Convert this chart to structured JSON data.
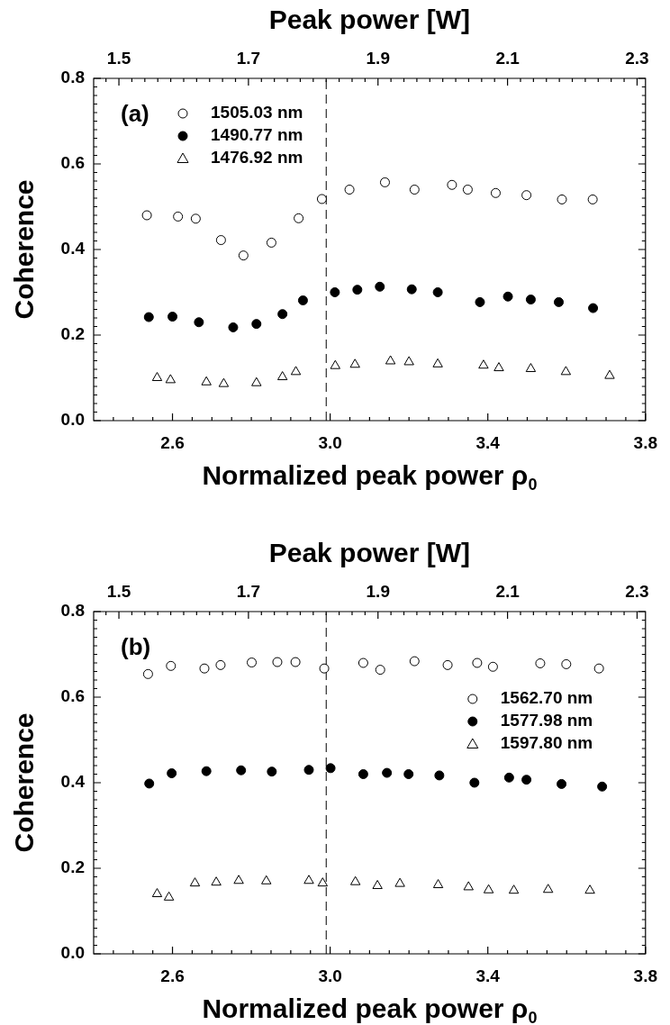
{
  "chart_data": [
    {
      "type": "scatter",
      "x2label": "Peak power [W]",
      "xlabel": "Normalized peak power ρ$_{0}$",
      "ylabel": "Coherence",
      "annotations": [
        "(a)"
      ],
      "legend": "top left",
      "xlim": [
        2.4,
        3.8
      ],
      "x2lim": [
        1.461,
        2.313
      ],
      "ylim": [
        0,
        0.8
      ],
      "xticks": [
        {
          "value": 2.45,
          "label": null
        },
        {
          "value": 2.5,
          "label": null
        },
        {
          "value": 2.55,
          "label": null
        },
        2.6,
        {
          "value": 2.65,
          "label": null
        },
        {
          "value": 2.7,
          "label": null
        },
        {
          "value": 2.75,
          "label": null
        },
        {
          "value": 2.8,
          "label": null
        },
        {
          "value": 2.85,
          "label": null
        },
        {
          "value": 2.9,
          "label": null
        },
        {
          "value": 2.95,
          "label": null
        },
        {
          "value": 3,
          "label": "3.0"
        },
        {
          "value": 3.05,
          "label": null
        },
        {
          "value": 3.1,
          "label": null
        },
        {
          "value": 3.15,
          "label": null
        },
        {
          "value": 3.2,
          "label": null
        },
        {
          "value": 3.25,
          "label": null
        },
        {
          "value": 3.3,
          "label": null
        },
        {
          "value": 3.35,
          "label": null
        },
        3.4,
        {
          "value": 3.45,
          "label": null
        },
        {
          "value": 3.5,
          "label": null
        },
        {
          "value": 3.55,
          "label": null
        },
        {
          "value": 3.6,
          "label": null
        },
        {
          "value": 3.65,
          "label": null
        },
        {
          "value": 3.7,
          "label": null
        },
        {
          "value": 3.75,
          "label": null
        },
        3.8
      ],
      "x2ticks": [
        {
          "value": 1.48,
          "label": null
        },
        1.5,
        {
          "value": 1.52,
          "label": null
        },
        {
          "value": 1.54,
          "label": null
        },
        {
          "value": 1.56,
          "label": null
        },
        {
          "value": 1.58,
          "label": null
        },
        {
          "value": 1.6,
          "label": null
        },
        {
          "value": 1.62,
          "label": null
        },
        {
          "value": 1.64,
          "label": null
        },
        {
          "value": 1.66,
          "label": null
        },
        {
          "value": 1.68,
          "label": null
        },
        1.7,
        {
          "value": 1.72,
          "label": null
        },
        {
          "value": 1.74,
          "label": null
        },
        {
          "value": 1.76,
          "label": null
        },
        {
          "value": 1.78,
          "label": null
        },
        {
          "value": 1.8,
          "label": null
        },
        {
          "value": 1.82,
          "label": null
        },
        {
          "value": 1.84,
          "label": null
        },
        {
          "value": 1.86,
          "label": null
        },
        {
          "value": 1.88,
          "label": null
        },
        1.9,
        {
          "value": 1.92,
          "label": null
        },
        {
          "value": 1.94,
          "label": null
        },
        {
          "value": 1.96,
          "label": null
        },
        {
          "value": 1.98,
          "label": null
        },
        {
          "value": 2,
          "label": null
        },
        {
          "value": 2.02,
          "label": null
        },
        {
          "value": 2.04,
          "label": null
        },
        {
          "value": 2.06,
          "label": null
        },
        {
          "value": 2.08,
          "label": null
        },
        2.1,
        {
          "value": 2.12,
          "label": null
        },
        {
          "value": 2.14,
          "label": null
        },
        {
          "value": 2.16,
          "label": null
        },
        {
          "value": 2.18,
          "label": null
        },
        {
          "value": 2.2,
          "label": null
        },
        {
          "value": 2.22,
          "label": null
        },
        {
          "value": 2.24,
          "label": null
        },
        {
          "value": 2.26,
          "label": null
        },
        {
          "value": 2.28,
          "label": null
        },
        2.3
      ],
      "yticks": [
        {
          "value": 0,
          "label": "0.0"
        },
        {
          "value": 0.02,
          "label": null
        },
        {
          "value": 0.04,
          "label": null
        },
        {
          "value": 0.06,
          "label": null
        },
        {
          "value": 0.08,
          "label": null
        },
        {
          "value": 0.1,
          "label": null
        },
        {
          "value": 0.12,
          "label": null
        },
        {
          "value": 0.14,
          "label": null
        },
        {
          "value": 0.16,
          "label": null
        },
        {
          "value": 0.18,
          "label": null
        },
        0.2,
        {
          "value": 0.22,
          "label": null
        },
        {
          "value": 0.24,
          "label": null
        },
        {
          "value": 0.26,
          "label": null
        },
        {
          "value": 0.28,
          "label": null
        },
        {
          "value": 0.3,
          "label": null
        },
        {
          "value": 0.32,
          "label": null
        },
        {
          "value": 0.34,
          "label": null
        },
        {
          "value": 0.36,
          "label": null
        },
        {
          "value": 0.38,
          "label": null
        },
        0.4,
        {
          "value": 0.42,
          "label": null
        },
        {
          "value": 0.44,
          "label": null
        },
        {
          "value": 0.46,
          "label": null
        },
        {
          "value": 0.48,
          "label": null
        },
        {
          "value": 0.5,
          "label": null
        },
        {
          "value": 0.52,
          "label": null
        },
        {
          "value": 0.54,
          "label": null
        },
        {
          "value": 0.56,
          "label": null
        },
        {
          "value": 0.58,
          "label": null
        },
        0.6,
        {
          "value": 0.62,
          "label": null
        },
        {
          "value": 0.64,
          "label": null
        },
        {
          "value": 0.66,
          "label": null
        },
        {
          "value": 0.68,
          "label": null
        },
        {
          "value": 0.7,
          "label": null
        },
        {
          "value": 0.72,
          "label": null
        },
        {
          "value": 0.74,
          "label": null
        },
        {
          "value": 0.76,
          "label": null
        },
        {
          "value": 0.78,
          "label": null
        },
        0.8
      ],
      "ref_lines": [
        {
          "axis": "x",
          "value": 2.99,
          "line_style": "dashed",
          "color": "#000000"
        }
      ],
      "series": [
        {
          "name": "1505.03 nm",
          "color": "#ffffff",
          "marker": "circle",
          "x": [
            2.535,
            2.614,
            2.659,
            2.723,
            2.78,
            2.851,
            2.92,
            2.979,
            3.049,
            3.139,
            3.214,
            3.309,
            3.349,
            3.42,
            3.498,
            3.588,
            3.666
          ],
          "values": [
            0.48,
            0.477,
            0.472,
            0.422,
            0.386,
            0.416,
            0.473,
            0.518,
            0.54,
            0.557,
            0.54,
            0.551,
            0.54,
            0.532,
            0.527,
            0.517,
            0.517
          ]
        },
        {
          "name": "1490.77 nm",
          "color": "#000000",
          "marker": "circle",
          "x": [
            2.54,
            2.6,
            2.667,
            2.754,
            2.813,
            2.879,
            2.931,
            3.012,
            3.069,
            3.126,
            3.207,
            3.273,
            3.38,
            3.451,
            3.509,
            3.58,
            3.667
          ],
          "values": [
            0.242,
            0.243,
            0.23,
            0.218,
            0.226,
            0.249,
            0.281,
            0.3,
            0.306,
            0.313,
            0.307,
            0.3,
            0.277,
            0.29,
            0.283,
            0.277,
            0.263
          ]
        },
        {
          "name": "1476.92 nm",
          "color": "#ffffff",
          "marker": "triangle",
          "x": [
            2.561,
            2.595,
            2.686,
            2.73,
            2.813,
            2.879,
            2.913,
            3.013,
            3.063,
            3.153,
            3.2,
            3.273,
            3.389,
            3.428,
            3.509,
            3.598,
            3.709
          ],
          "values": [
            0.1,
            0.095,
            0.09,
            0.086,
            0.088,
            0.102,
            0.114,
            0.128,
            0.131,
            0.139,
            0.137,
            0.132,
            0.129,
            0.123,
            0.121,
            0.114,
            0.105
          ]
        }
      ]
    },
    {
      "type": "scatter",
      "x2label": "Peak power [W]",
      "xlabel": "Normalized peak power ρ$_{0}$",
      "ylabel": "Coherence",
      "annotations": [
        "(b)"
      ],
      "legend": "right",
      "xlim": [
        2.4,
        3.8
      ],
      "x2lim": [
        1.461,
        2.313
      ],
      "ylim": [
        0,
        0.8
      ],
      "xticks": [
        {
          "value": 2.45,
          "label": null
        },
        {
          "value": 2.5,
          "label": null
        },
        {
          "value": 2.55,
          "label": null
        },
        2.6,
        {
          "value": 2.65,
          "label": null
        },
        {
          "value": 2.7,
          "label": null
        },
        {
          "value": 2.75,
          "label": null
        },
        {
          "value": 2.8,
          "label": null
        },
        {
          "value": 2.85,
          "label": null
        },
        {
          "value": 2.9,
          "label": null
        },
        {
          "value": 2.95,
          "label": null
        },
        {
          "value": 3,
          "label": "3.0"
        },
        {
          "value": 3.05,
          "label": null
        },
        {
          "value": 3.1,
          "label": null
        },
        {
          "value": 3.15,
          "label": null
        },
        {
          "value": 3.2,
          "label": null
        },
        {
          "value": 3.25,
          "label": null
        },
        {
          "value": 3.3,
          "label": null
        },
        {
          "value": 3.35,
          "label": null
        },
        3.4,
        {
          "value": 3.45,
          "label": null
        },
        {
          "value": 3.5,
          "label": null
        },
        {
          "value": 3.55,
          "label": null
        },
        {
          "value": 3.6,
          "label": null
        },
        {
          "value": 3.65,
          "label": null
        },
        {
          "value": 3.7,
          "label": null
        },
        {
          "value": 3.75,
          "label": null
        },
        3.8
      ],
      "x2ticks": [
        {
          "value": 1.48,
          "label": null
        },
        1.5,
        {
          "value": 1.52,
          "label": null
        },
        {
          "value": 1.54,
          "label": null
        },
        {
          "value": 1.56,
          "label": null
        },
        {
          "value": 1.58,
          "label": null
        },
        {
          "value": 1.6,
          "label": null
        },
        {
          "value": 1.62,
          "label": null
        },
        {
          "value": 1.64,
          "label": null
        },
        {
          "value": 1.66,
          "label": null
        },
        {
          "value": 1.68,
          "label": null
        },
        1.7,
        {
          "value": 1.72,
          "label": null
        },
        {
          "value": 1.74,
          "label": null
        },
        {
          "value": 1.76,
          "label": null
        },
        {
          "value": 1.78,
          "label": null
        },
        {
          "value": 1.8,
          "label": null
        },
        {
          "value": 1.82,
          "label": null
        },
        {
          "value": 1.84,
          "label": null
        },
        {
          "value": 1.86,
          "label": null
        },
        {
          "value": 1.88,
          "label": null
        },
        1.9,
        {
          "value": 1.92,
          "label": null
        },
        {
          "value": 1.94,
          "label": null
        },
        {
          "value": 1.96,
          "label": null
        },
        {
          "value": 1.98,
          "label": null
        },
        {
          "value": 2,
          "label": null
        },
        {
          "value": 2.02,
          "label": null
        },
        {
          "value": 2.04,
          "label": null
        },
        {
          "value": 2.06,
          "label": null
        },
        {
          "value": 2.08,
          "label": null
        },
        2.1,
        {
          "value": 2.12,
          "label": null
        },
        {
          "value": 2.14,
          "label": null
        },
        {
          "value": 2.16,
          "label": null
        },
        {
          "value": 2.18,
          "label": null
        },
        {
          "value": 2.2,
          "label": null
        },
        {
          "value": 2.22,
          "label": null
        },
        {
          "value": 2.24,
          "label": null
        },
        {
          "value": 2.26,
          "label": null
        },
        {
          "value": 2.28,
          "label": null
        },
        2.3
      ],
      "yticks": [
        {
          "value": 0,
          "label": "0.0"
        },
        {
          "value": 0.02,
          "label": null
        },
        {
          "value": 0.04,
          "label": null
        },
        {
          "value": 0.06,
          "label": null
        },
        {
          "value": 0.08,
          "label": null
        },
        {
          "value": 0.1,
          "label": null
        },
        {
          "value": 0.12,
          "label": null
        },
        {
          "value": 0.14,
          "label": null
        },
        {
          "value": 0.16,
          "label": null
        },
        {
          "value": 0.18,
          "label": null
        },
        0.2,
        {
          "value": 0.22,
          "label": null
        },
        {
          "value": 0.24,
          "label": null
        },
        {
          "value": 0.26,
          "label": null
        },
        {
          "value": 0.28,
          "label": null
        },
        {
          "value": 0.3,
          "label": null
        },
        {
          "value": 0.32,
          "label": null
        },
        {
          "value": 0.34,
          "label": null
        },
        {
          "value": 0.36,
          "label": null
        },
        {
          "value": 0.38,
          "label": null
        },
        0.4,
        {
          "value": 0.42,
          "label": null
        },
        {
          "value": 0.44,
          "label": null
        },
        {
          "value": 0.46,
          "label": null
        },
        {
          "value": 0.48,
          "label": null
        },
        {
          "value": 0.5,
          "label": null
        },
        {
          "value": 0.52,
          "label": null
        },
        {
          "value": 0.54,
          "label": null
        },
        {
          "value": 0.56,
          "label": null
        },
        {
          "value": 0.58,
          "label": null
        },
        0.6,
        {
          "value": 0.62,
          "label": null
        },
        {
          "value": 0.64,
          "label": null
        },
        {
          "value": 0.66,
          "label": null
        },
        {
          "value": 0.68,
          "label": null
        },
        {
          "value": 0.7,
          "label": null
        },
        {
          "value": 0.72,
          "label": null
        },
        {
          "value": 0.74,
          "label": null
        },
        {
          "value": 0.76,
          "label": null
        },
        {
          "value": 0.78,
          "label": null
        },
        0.8
      ],
      "ref_lines": [
        {
          "axis": "x",
          "value": 2.99,
          "line_style": "dashed",
          "color": "#000000"
        }
      ],
      "series": [
        {
          "name": "1562.70 nm",
          "color": "#ffffff",
          "marker": "circle",
          "x": [
            2.538,
            2.596,
            2.681,
            2.722,
            2.801,
            2.866,
            2.912,
            2.985,
            3.084,
            3.127,
            3.214,
            3.298,
            3.373,
            3.413,
            3.533,
            3.599,
            3.682
          ],
          "values": [
            0.654,
            0.673,
            0.667,
            0.675,
            0.681,
            0.682,
            0.682,
            0.667,
            0.68,
            0.664,
            0.684,
            0.675,
            0.68,
            0.671,
            0.679,
            0.677,
            0.667
          ]
        },
        {
          "name": "1577.98 nm",
          "color": "#000000",
          "marker": "circle",
          "x": [
            2.541,
            2.598,
            2.686,
            2.774,
            2.852,
            2.946,
            3.001,
            3.084,
            3.144,
            3.199,
            3.277,
            3.366,
            3.454,
            3.498,
            3.587,
            3.69
          ],
          "values": [
            0.398,
            0.422,
            0.427,
            0.429,
            0.426,
            0.43,
            0.434,
            0.42,
            0.423,
            0.42,
            0.417,
            0.4,
            0.412,
            0.407,
            0.397,
            0.391
          ]
        },
        {
          "name": "1597.80 nm",
          "color": "#ffffff",
          "marker": "triangle",
          "x": [
            2.561,
            2.591,
            2.657,
            2.711,
            2.768,
            2.838,
            2.946,
            2.981,
            3.064,
            3.12,
            3.177,
            3.274,
            3.351,
            3.402,
            3.466,
            3.553,
            3.659
          ],
          "values": [
            0.14,
            0.132,
            0.165,
            0.167,
            0.171,
            0.17,
            0.171,
            0.165,
            0.168,
            0.159,
            0.164,
            0.161,
            0.156,
            0.149,
            0.148,
            0.15,
            0.148
          ]
        }
      ]
    }
  ]
}
